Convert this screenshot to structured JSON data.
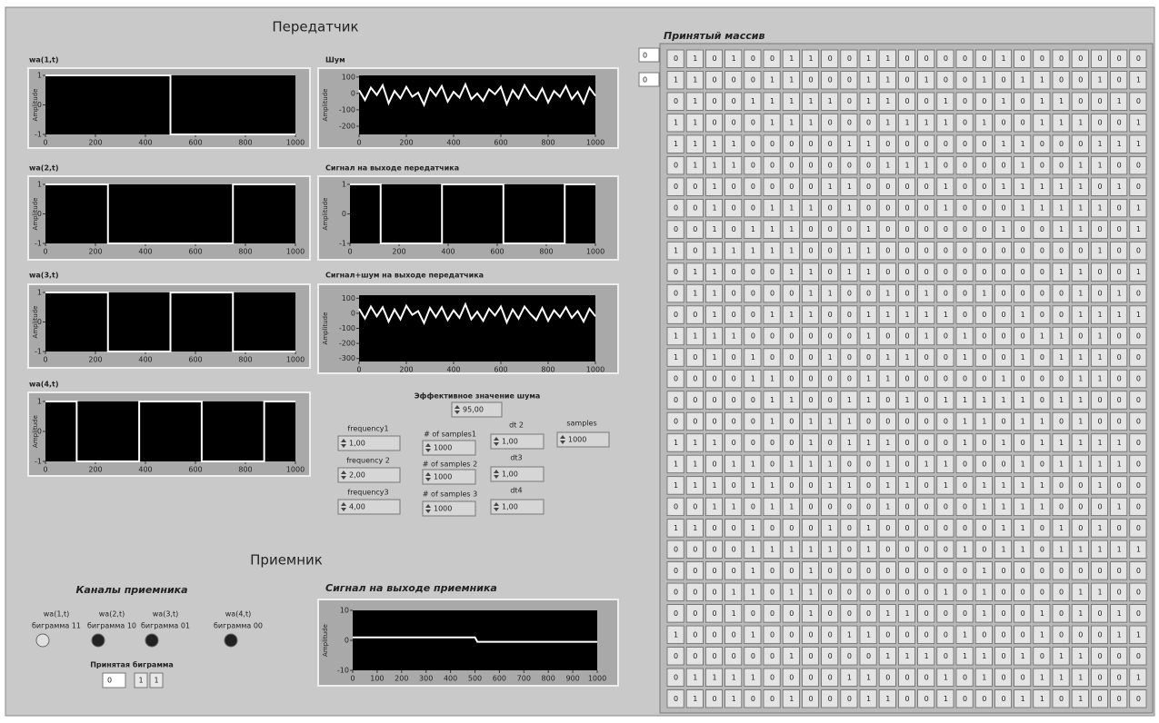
{
  "transmitter_title": "Передатчик",
  "chart_data": [
    {
      "type": "line",
      "title": "wa(1,t)",
      "y_label": "Amplitude",
      "x": [
        0,
        500,
        500,
        1000
      ],
      "values": [
        1,
        1,
        -1,
        -1
      ],
      "color": "#ffffff",
      "xlim": [
        0,
        1000
      ],
      "ylim": [
        -1,
        1
      ],
      "xticks": [
        0,
        200,
        400,
        600,
        800,
        1000
      ],
      "yticks": [
        1,
        0,
        -1
      ]
    },
    {
      "type": "line",
      "title": "Шум",
      "y_label": "Amplitude",
      "x": [
        0,
        25,
        50,
        75,
        100,
        125,
        150,
        175,
        200,
        225,
        250,
        275,
        300,
        325,
        350,
        375,
        400,
        425,
        450,
        475,
        500,
        525,
        550,
        575,
        600,
        625,
        650,
        675,
        700,
        725,
        750,
        775,
        800,
        825,
        850,
        875,
        900,
        925,
        950,
        975,
        1000
      ],
      "values": [
        20,
        -40,
        35,
        -10,
        50,
        -60,
        15,
        -30,
        40,
        -20,
        5,
        -70,
        30,
        -15,
        45,
        -50,
        10,
        -25,
        55,
        -35,
        0,
        -45,
        25,
        -5,
        40,
        -65,
        20,
        -30,
        50,
        -10,
        -40,
        30,
        -55,
        15,
        -20,
        45,
        -35,
        10,
        -60,
        35,
        -15
      ],
      "color": "#ffffff",
      "xlim": [
        0,
        1000
      ],
      "ylim": [
        -250,
        110
      ],
      "xticks": [
        0,
        200,
        400,
        600,
        800,
        1000
      ],
      "yticks": [
        100,
        0,
        -100,
        -200
      ]
    },
    {
      "type": "line",
      "title": "wa(2,t)",
      "y_label": "Amplitude",
      "x": [
        0,
        250,
        250,
        750,
        750,
        1000
      ],
      "values": [
        1,
        1,
        -1,
        -1,
        1,
        1
      ],
      "color": "#ffffff",
      "xlim": [
        0,
        1000
      ],
      "ylim": [
        -1,
        1
      ],
      "xticks": [
        0,
        200,
        400,
        600,
        800,
        1000
      ],
      "yticks": [
        1,
        0,
        -1
      ]
    },
    {
      "type": "line",
      "title": "Сигнал на выходе передатчика",
      "y_label": "Amplitude",
      "x": [
        0,
        125,
        125,
        375,
        375,
        625,
        625,
        875,
        875,
        1000
      ],
      "values": [
        1,
        1,
        -1,
        -1,
        1,
        1,
        -1,
        -1,
        1,
        1
      ],
      "color": "#ffffff",
      "xlim": [
        0,
        1000
      ],
      "ylim": [
        -1,
        1
      ],
      "xticks": [
        0,
        200,
        400,
        600,
        800,
        1000
      ],
      "yticks": [
        1,
        0,
        -1
      ]
    },
    {
      "type": "line",
      "title": "wa(3,t)",
      "y_label": "Amplitude",
      "x": [
        0,
        250,
        250,
        500,
        500,
        750,
        750,
        1000
      ],
      "values": [
        1,
        1,
        -1,
        -1,
        1,
        1,
        -1,
        -1
      ],
      "color": "#ffffff",
      "xlim": [
        0,
        1000
      ],
      "ylim": [
        -1,
        1
      ],
      "xticks": [
        0,
        200,
        400,
        600,
        800,
        1000
      ],
      "yticks": [
        1,
        0,
        -1
      ]
    },
    {
      "type": "line",
      "title": "Сигнал+шум на выходе передатчика",
      "y_label": "Amplitude",
      "x": [
        0,
        25,
        50,
        75,
        100,
        125,
        150,
        175,
        200,
        225,
        250,
        275,
        300,
        325,
        350,
        375,
        400,
        425,
        450,
        475,
        500,
        525,
        550,
        575,
        600,
        625,
        650,
        675,
        700,
        725,
        750,
        775,
        800,
        825,
        850,
        875,
        900,
        925,
        950,
        975,
        1000
      ],
      "values": [
        30,
        -35,
        45,
        -20,
        40,
        -55,
        25,
        -40,
        50,
        -10,
        15,
        -65,
        35,
        -25,
        40,
        -45,
        20,
        -30,
        60,
        -40,
        10,
        -50,
        30,
        -15,
        45,
        -60,
        25,
        -35,
        45,
        -5,
        -45,
        35,
        -50,
        20,
        -25,
        40,
        -30,
        15,
        -55,
        30,
        -20
      ],
      "color": "#ffffff",
      "xlim": [
        0,
        1000
      ],
      "ylim": [
        -320,
        120
      ],
      "xticks": [
        0,
        200,
        400,
        600,
        800,
        1000
      ],
      "yticks": [
        100,
        0,
        -100,
        -200,
        -300
      ]
    },
    {
      "type": "line",
      "title": "wa(4,t)",
      "y_label": "Amplitude",
      "x": [
        0,
        125,
        125,
        375,
        375,
        625,
        625,
        875,
        875,
        1000
      ],
      "values": [
        1,
        1,
        -1,
        -1,
        1,
        1,
        -1,
        -1,
        1,
        1
      ],
      "color": "#ffffff",
      "xlim": [
        0,
        1000
      ],
      "ylim": [
        -1,
        1
      ],
      "xticks": [
        0,
        200,
        400,
        600,
        800,
        1000
      ],
      "yticks": [
        1,
        0,
        -1
      ]
    },
    {
      "type": "line",
      "title": "Сигнал на выходе приемника",
      "y_label": "Amplitude",
      "x": [
        0,
        500,
        510,
        1000
      ],
      "values": [
        1,
        1,
        -0.5,
        -0.5
      ],
      "color": "#ffffff",
      "xlim": [
        0,
        1000
      ],
      "ylim": [
        -10,
        10
      ],
      "xticks": [
        0,
        100,
        200,
        300,
        400,
        500,
        600,
        700,
        800,
        900,
        1000
      ],
      "yticks": [
        10,
        0,
        -10
      ]
    }
  ],
  "controls": [
    {
      "label": "Эффективное значение шума",
      "value": "95,00"
    },
    {
      "label": "frequency1",
      "value": "1,00"
    },
    {
      "label": "frequency 2",
      "value": "2,00"
    },
    {
      "label": "frequency3",
      "value": "4,00"
    },
    {
      "label": "# of samples1",
      "value": 1000
    },
    {
      "label": "# of samples 2",
      "value": 1000
    },
    {
      "label": "# of samples 3",
      "value": 1000
    },
    {
      "label": "dt 2",
      "value": "1,00"
    },
    {
      "label": "dt3",
      "value": "1,00"
    },
    {
      "label": "dt4",
      "value": "1,00"
    },
    {
      "label": "samples",
      "value": 1000
    }
  ],
  "receiver": {
    "title": "Приемник",
    "channels_title": "Каналы приемника",
    "leds": [
      {
        "label_1": "wa(1,t)",
        "label_2": "биграмма 11",
        "on": true
      },
      {
        "label_1": "wa(2,t)",
        "label_2": "биграмма 10",
        "on": false
      },
      {
        "label_1": "wa(3,t)",
        "label_2": "биграмма 01",
        "on": false
      },
      {
        "label_1": "wa(4,t)",
        "label_2": "биграмма 00",
        "on": false
      }
    ],
    "bigram_title": "Принятая биграмма",
    "bigram_index": 0,
    "bigram": [
      1,
      1
    ]
  },
  "received_array": {
    "title": "Принятый массив",
    "indices": [
      0,
      0
    ],
    "rows": [
      [
        0,
        1,
        0,
        1,
        0,
        0,
        1,
        1,
        0,
        0,
        1,
        1,
        0,
        0,
        0,
        0,
        0,
        1,
        0,
        0,
        0,
        0,
        0,
        0,
        0
      ],
      [
        1,
        1,
        0,
        0,
        0,
        1,
        1,
        0,
        0,
        0,
        1,
        1,
        0,
        1,
        0,
        0,
        1,
        0,
        1,
        1,
        0,
        0,
        1,
        0,
        1
      ],
      [
        0,
        1,
        0,
        0,
        1,
        1,
        1,
        1,
        1,
        0,
        1,
        1,
        0,
        0,
        1,
        0,
        0,
        1,
        0,
        1,
        1,
        0,
        0,
        1,
        0
      ],
      [
        1,
        1,
        0,
        0,
        0,
        1,
        1,
        1,
        0,
        0,
        0,
        1,
        1,
        1,
        1,
        0,
        1,
        0,
        0,
        1,
        1,
        1,
        0,
        0,
        1
      ],
      [
        1,
        1,
        1,
        1,
        0,
        0,
        0,
        0,
        0,
        1,
        1,
        0,
        0,
        0,
        0,
        0,
        0,
        1,
        1,
        0,
        0,
        0,
        1,
        1,
        1
      ],
      [
        0,
        1,
        1,
        1,
        0,
        0,
        0,
        0,
        0,
        0,
        0,
        1,
        1,
        1,
        0,
        0,
        0,
        0,
        1,
        0,
        0,
        1,
        1,
        0,
        0
      ],
      [
        0,
        0,
        1,
        0,
        0,
        0,
        0,
        0,
        1,
        1,
        0,
        0,
        0,
        0,
        1,
        0,
        0,
        1,
        1,
        1,
        1,
        1,
        0,
        1,
        0
      ],
      [
        0,
        0,
        1,
        0,
        0,
        1,
        1,
        1,
        0,
        1,
        0,
        0,
        0,
        0,
        1,
        0,
        0,
        0,
        1,
        1,
        1,
        1,
        1,
        0,
        1
      ],
      [
        0,
        0,
        1,
        0,
        1,
        1,
        1,
        0,
        0,
        0,
        1,
        0,
        0,
        0,
        0,
        0,
        0,
        1,
        0,
        0,
        1,
        1,
        0,
        0,
        1
      ],
      [
        1,
        0,
        1,
        1,
        1,
        1,
        1,
        0,
        0,
        1,
        1,
        0,
        0,
        0,
        0,
        0,
        0,
        0,
        0,
        0,
        0,
        0,
        1,
        0,
        0
      ],
      [
        0,
        1,
        1,
        0,
        0,
        0,
        1,
        1,
        0,
        1,
        1,
        0,
        0,
        0,
        0,
        0,
        0,
        0,
        0,
        0,
        1,
        1,
        0,
        0,
        1
      ],
      [
        0,
        1,
        1,
        0,
        0,
        0,
        0,
        1,
        1,
        0,
        0,
        1,
        0,
        1,
        0,
        0,
        1,
        0,
        0,
        0,
        0,
        1,
        0,
        1,
        0
      ],
      [
        0,
        0,
        1,
        0,
        0,
        1,
        1,
        1,
        0,
        0,
        1,
        1,
        1,
        1,
        1,
        0,
        0,
        0,
        1,
        0,
        0,
        1,
        1,
        1,
        1
      ],
      [
        1,
        1,
        1,
        1,
        0,
        0,
        0,
        0,
        0,
        0,
        1,
        0,
        0,
        1,
        0,
        1,
        0,
        0,
        0,
        1,
        1,
        0,
        1,
        0,
        0
      ],
      [
        1,
        0,
        1,
        0,
        1,
        0,
        0,
        0,
        1,
        0,
        0,
        1,
        1,
        0,
        0,
        1,
        0,
        0,
        1,
        0,
        1,
        1,
        1,
        0,
        0
      ],
      [
        0,
        0,
        0,
        0,
        1,
        1,
        0,
        0,
        0,
        0,
        1,
        1,
        0,
        0,
        0,
        0,
        0,
        1,
        0,
        0,
        0,
        1,
        1,
        0,
        0
      ],
      [
        0,
        0,
        0,
        0,
        0,
        1,
        1,
        0,
        0,
        1,
        1,
        0,
        1,
        0,
        1,
        1,
        1,
        1,
        1,
        0,
        1,
        1,
        0,
        0,
        0
      ],
      [
        0,
        0,
        0,
        0,
        0,
        1,
        0,
        1,
        1,
        1,
        0,
        0,
        0,
        0,
        0,
        1,
        1,
        0,
        1,
        1,
        0,
        1,
        0,
        0,
        0
      ],
      [
        1,
        1,
        1,
        0,
        0,
        0,
        0,
        1,
        0,
        1,
        1,
        1,
        0,
        0,
        0,
        1,
        0,
        1,
        0,
        1,
        1,
        1,
        1,
        1,
        0
      ],
      [
        1,
        1,
        0,
        1,
        1,
        0,
        1,
        1,
        1,
        0,
        0,
        1,
        0,
        1,
        1,
        0,
        0,
        0,
        1,
        0,
        1,
        1,
        1,
        1,
        0
      ],
      [
        1,
        1,
        1,
        0,
        1,
        1,
        0,
        0,
        1,
        1,
        0,
        1,
        1,
        0,
        1,
        0,
        1,
        1,
        1,
        1,
        0,
        0,
        1,
        0,
        0
      ],
      [
        0,
        0,
        1,
        1,
        0,
        1,
        1,
        0,
        0,
        0,
        0,
        1,
        0,
        0,
        0,
        0,
        1,
        1,
        1,
        1,
        0,
        0,
        0,
        1,
        0
      ],
      [
        1,
        1,
        0,
        0,
        1,
        0,
        0,
        0,
        1,
        0,
        1,
        0,
        0,
        0,
        0,
        0,
        0,
        1,
        1,
        0,
        1,
        0,
        1,
        0,
        0
      ],
      [
        0,
        0,
        0,
        0,
        1,
        1,
        1,
        1,
        1,
        0,
        1,
        0,
        0,
        0,
        0,
        1,
        0,
        1,
        1,
        0,
        1,
        1,
        1,
        1,
        1
      ],
      [
        0,
        0,
        0,
        0,
        1,
        0,
        0,
        1,
        0,
        0,
        0,
        0,
        0,
        0,
        0,
        0,
        1,
        0,
        0,
        0,
        0,
        0,
        0,
        0,
        0
      ],
      [
        0,
        0,
        0,
        1,
        1,
        0,
        1,
        1,
        0,
        0,
        0,
        0,
        0,
        0,
        1,
        0,
        1,
        0,
        0,
        0,
        0,
        1,
        1,
        0,
        0
      ],
      [
        0,
        0,
        0,
        1,
        0,
        0,
        0,
        1,
        0,
        0,
        0,
        1,
        1,
        0,
        0,
        0,
        1,
        0,
        0,
        1,
        0,
        1,
        0,
        1,
        0
      ],
      [
        1,
        0,
        0,
        0,
        1,
        0,
        0,
        0,
        0,
        1,
        1,
        0,
        0,
        0,
        0,
        1,
        0,
        0,
        0,
        1,
        0,
        0,
        0,
        1,
        1
      ],
      [
        0,
        0,
        0,
        0,
        0,
        0,
        1,
        0,
        0,
        0,
        0,
        1,
        1,
        1,
        0,
        1,
        1,
        0,
        1,
        0,
        1,
        1,
        0,
        0,
        0
      ],
      [
        0,
        1,
        1,
        1,
        1,
        0,
        0,
        0,
        0,
        1,
        1,
        0,
        0,
        0,
        1,
        0,
        1,
        0,
        0,
        1,
        1,
        1,
        0,
        0,
        1
      ],
      [
        0,
        1,
        0,
        1,
        0,
        0,
        1,
        0,
        0,
        0,
        1,
        1,
        0,
        0,
        1,
        0,
        0,
        0,
        1,
        1,
        0,
        1,
        0,
        0,
        0
      ]
    ]
  }
}
